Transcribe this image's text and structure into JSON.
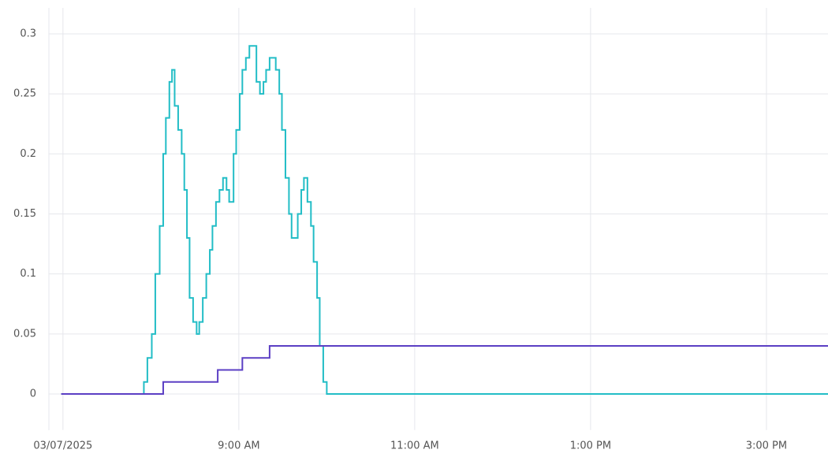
{
  "chart_data": {
    "type": "line",
    "step": true,
    "grid": true,
    "xlim": [
      6.84,
      15.7
    ],
    "xticks": [
      {
        "value": 7,
        "label": "03/07/2025"
      },
      {
        "value": 9,
        "label": "9:00 AM"
      },
      {
        "value": 11,
        "label": "11:00 AM"
      },
      {
        "value": 13,
        "label": "1:00 PM"
      },
      {
        "value": 15,
        "label": "3:00 PM"
      }
    ],
    "ylim": [
      -0.03,
      0.32
    ],
    "yticks": [
      0,
      0.05,
      0.1,
      0.15,
      0.2,
      0.25,
      0.3
    ],
    "series": [
      {
        "color": "#22bdc6",
        "x": [
          6.98,
          7.92,
          7.96,
          8.01,
          8.05,
          8.1,
          8.14,
          8.17,
          8.21,
          8.24,
          8.27,
          8.31,
          8.35,
          8.38,
          8.41,
          8.44,
          8.48,
          8.52,
          8.55,
          8.59,
          8.63,
          8.67,
          8.7,
          8.74,
          8.78,
          8.82,
          8.86,
          8.89,
          8.94,
          8.97,
          9.01,
          9.04,
          9.08,
          9.12,
          9.2,
          9.24,
          9.28,
          9.31,
          9.35,
          9.42,
          9.46,
          9.49,
          9.53,
          9.57,
          9.6,
          9.67,
          9.71,
          9.74,
          9.78,
          9.82,
          9.85,
          9.89,
          9.92,
          9.96,
          10.0,
          15.7
        ],
        "values": [
          0,
          0.01,
          0.03,
          0.05,
          0.1,
          0.14,
          0.2,
          0.23,
          0.26,
          0.27,
          0.24,
          0.22,
          0.2,
          0.17,
          0.13,
          0.08,
          0.06,
          0.05,
          0.06,
          0.08,
          0.1,
          0.12,
          0.14,
          0.16,
          0.17,
          0.18,
          0.17,
          0.16,
          0.2,
          0.22,
          0.25,
          0.27,
          0.28,
          0.29,
          0.26,
          0.25,
          0.26,
          0.27,
          0.28,
          0.27,
          0.25,
          0.22,
          0.18,
          0.15,
          0.13,
          0.15,
          0.17,
          0.18,
          0.16,
          0.14,
          0.11,
          0.08,
          0.04,
          0.01,
          0,
          0
        ]
      },
      {
        "color": "#5b3fc4",
        "x": [
          6.98,
          8.14,
          8.76,
          9.04,
          9.35,
          15.7
        ],
        "values": [
          0,
          0.01,
          0.02,
          0.03,
          0.04,
          0.04
        ]
      }
    ]
  }
}
